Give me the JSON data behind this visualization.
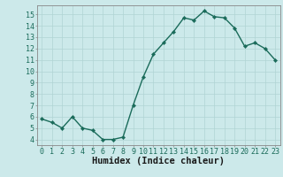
{
  "x": [
    0,
    1,
    2,
    3,
    4,
    5,
    6,
    7,
    8,
    9,
    10,
    11,
    12,
    13,
    14,
    15,
    16,
    17,
    18,
    19,
    20,
    21,
    22,
    23
  ],
  "y": [
    5.8,
    5.5,
    5.0,
    6.0,
    5.0,
    4.8,
    4.0,
    4.0,
    4.2,
    7.0,
    9.5,
    11.5,
    12.5,
    13.5,
    14.7,
    14.5,
    15.3,
    14.8,
    14.7,
    13.8,
    12.2,
    12.5,
    12.0,
    11.0
  ],
  "line_color": "#1a6b5a",
  "marker": "D",
  "marker_size": 2.2,
  "bg_color": "#cce9ea",
  "grid_color": "#b0d4d4",
  "tick_label_color": "#1a6b5a",
  "xlabel": "Humidex (Indice chaleur)",
  "xlabel_color": "#1a1a1a",
  "xlabel_fontsize": 7.5,
  "ylim": [
    3.5,
    15.8
  ],
  "xlim": [
    -0.5,
    23.5
  ],
  "yticks": [
    4,
    5,
    6,
    7,
    8,
    9,
    10,
    11,
    12,
    13,
    14,
    15
  ],
  "xticks": [
    0,
    1,
    2,
    3,
    4,
    5,
    6,
    7,
    8,
    9,
    10,
    11,
    12,
    13,
    14,
    15,
    16,
    17,
    18,
    19,
    20,
    21,
    22,
    23
  ],
  "linewidth": 1.0,
  "grid_linewidth": 0.5,
  "tick_fontsize": 6.0,
  "spine_color": "#888888"
}
